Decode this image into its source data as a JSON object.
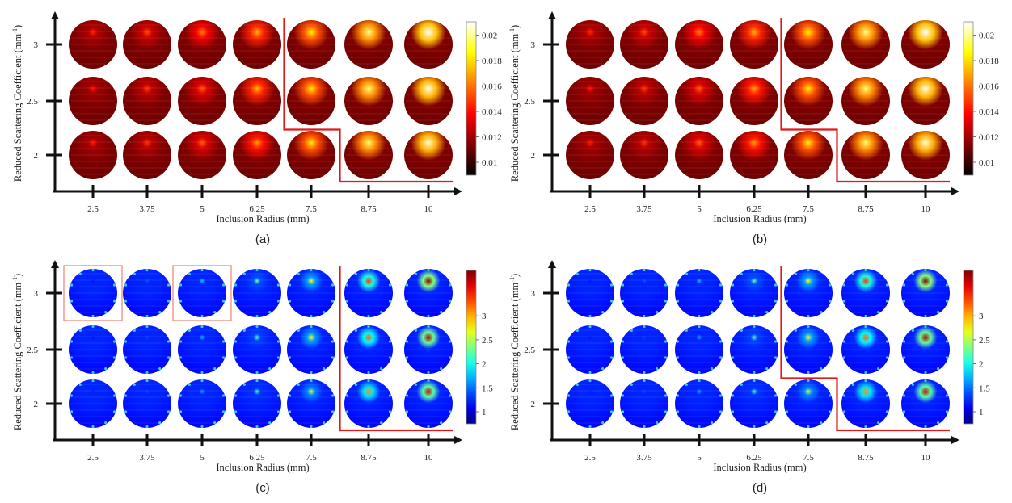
{
  "chart_data": [
    {
      "type": "heatmap",
      "panel_label": "(a)",
      "colormap": "hot",
      "xlabel": "Inclusion Radius (mm)",
      "ylabel": "Reduced Scattering Coefficient (mm",
      "ylabel_superscript": "-1",
      "ylabel_close": ")",
      "x_categories": [
        "2.5",
        "3.75",
        "5",
        "6.25",
        "7.5",
        "8.75",
        "10"
      ],
      "y_categories": [
        "3",
        "2.5",
        "2"
      ],
      "intensity": [
        [
          0.05,
          0.15,
          0.3,
          0.45,
          0.62,
          0.82,
          1.0
        ],
        [
          0.0,
          0.1,
          0.2,
          0.45,
          0.6,
          0.8,
          0.95
        ],
        [
          0.02,
          0.08,
          0.2,
          0.38,
          0.6,
          0.78,
          0.92
        ]
      ],
      "colorbar": {
        "ticks": [
          "0.01",
          "0.012",
          "0.014",
          "0.016",
          "0.018",
          "0.02"
        ]
      },
      "boundary_step": [
        4,
        4,
        5
      ],
      "highlight_boxes": []
    },
    {
      "type": "heatmap",
      "panel_label": "(b)",
      "colormap": "hot",
      "xlabel": "Inclusion Radius (mm)",
      "ylabel": "Reduced Scattering Coefficient (mm",
      "ylabel_superscript": "-1",
      "ylabel_close": ")",
      "x_categories": [
        "2.5",
        "3.75",
        "5",
        "6.25",
        "7.5",
        "8.75",
        "10"
      ],
      "y_categories": [
        "3",
        "2.5",
        "2"
      ],
      "intensity": [
        [
          0.05,
          0.15,
          0.3,
          0.45,
          0.62,
          0.82,
          1.0
        ],
        [
          0.0,
          0.1,
          0.2,
          0.4,
          0.6,
          0.8,
          0.95
        ],
        [
          0.02,
          0.08,
          0.2,
          0.38,
          0.6,
          0.78,
          0.92
        ]
      ],
      "colorbar": {
        "ticks": [
          "0.01",
          "0.012",
          "0.014",
          "0.016",
          "0.018",
          "0.02"
        ]
      },
      "boundary_step": [
        4,
        4,
        5
      ],
      "highlight_boxes": []
    },
    {
      "type": "heatmap",
      "panel_label": "(c)",
      "colormap": "jet",
      "xlabel": "Inclusion Radius (mm)",
      "ylabel": "Reduced Scattering Coefficient (mm",
      "ylabel_superscript": "-1",
      "ylabel_close": ")",
      "x_categories": [
        "2.5",
        "3.75",
        "5",
        "6.25",
        "7.5",
        "8.75",
        "10"
      ],
      "y_categories": [
        "3",
        "2.5",
        "2"
      ],
      "intensity": [
        [
          0.02,
          0.1,
          0.25,
          0.4,
          0.55,
          0.8,
          1.0
        ],
        [
          0.02,
          0.08,
          0.22,
          0.38,
          0.55,
          0.75,
          0.95
        ],
        [
          0.02,
          0.08,
          0.2,
          0.35,
          0.5,
          0.7,
          0.92
        ]
      ],
      "colorbar": {
        "ticks": [
          "1",
          "1.5",
          "2",
          "2.5",
          "3"
        ]
      },
      "boundary_step": [
        5,
        5,
        5
      ],
      "highlight_boxes": [
        [
          0,
          0
        ],
        [
          0,
          2
        ]
      ]
    },
    {
      "type": "heatmap",
      "panel_label": "(d)",
      "colormap": "jet",
      "xlabel": "Inclusion Radius (mm)",
      "ylabel": "Reduced Scattering Coefficient (mm",
      "ylabel_superscript": "-1",
      "ylabel_close": ")",
      "x_categories": [
        "2.5",
        "3.75",
        "5",
        "6.25",
        "7.5",
        "8.75",
        "10"
      ],
      "y_categories": [
        "3",
        "2.5",
        "2"
      ],
      "intensity": [
        [
          0.02,
          0.1,
          0.22,
          0.4,
          0.55,
          0.8,
          1.0
        ],
        [
          0.02,
          0.08,
          0.2,
          0.38,
          0.55,
          0.75,
          0.95
        ],
        [
          0.02,
          0.08,
          0.2,
          0.35,
          0.5,
          0.7,
          0.92
        ]
      ],
      "colorbar": {
        "ticks": [
          "1",
          "1.5",
          "2",
          "2.5",
          "3"
        ]
      },
      "boundary_step": [
        4,
        4,
        5
      ],
      "highlight_boxes": []
    }
  ]
}
